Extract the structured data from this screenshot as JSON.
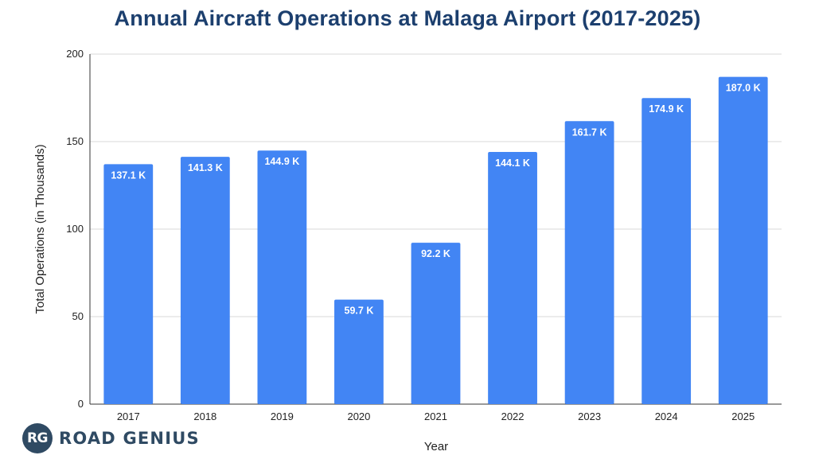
{
  "chart_data": {
    "type": "bar",
    "title": "Annual Aircraft Operations at Malaga Airport (2017-2025)",
    "xlabel": "Year",
    "ylabel": "Total Operations (in Thousands)",
    "categories": [
      "2017",
      "2018",
      "2019",
      "2020",
      "2021",
      "2022",
      "2023",
      "2024",
      "2025"
    ],
    "values": [
      137.1,
      141.3,
      144.9,
      59.7,
      92.2,
      144.1,
      161.7,
      174.9,
      187.0
    ],
    "data_labels": [
      "137.1 K",
      "141.3 K",
      "144.9 K",
      "59.7 K",
      "92.2 K",
      "144.1 K",
      "161.7 K",
      "174.9 K",
      "187.0 K"
    ],
    "ylim": [
      0,
      200
    ],
    "yticks": [
      0,
      50,
      100,
      150,
      200
    ],
    "grid": true,
    "bar_color": "#4285f4",
    "grid_color": "#d9d9d9",
    "axis_color": "#333333"
  },
  "logo": {
    "initials": "RG",
    "name": "ROAD GENIUS"
  }
}
